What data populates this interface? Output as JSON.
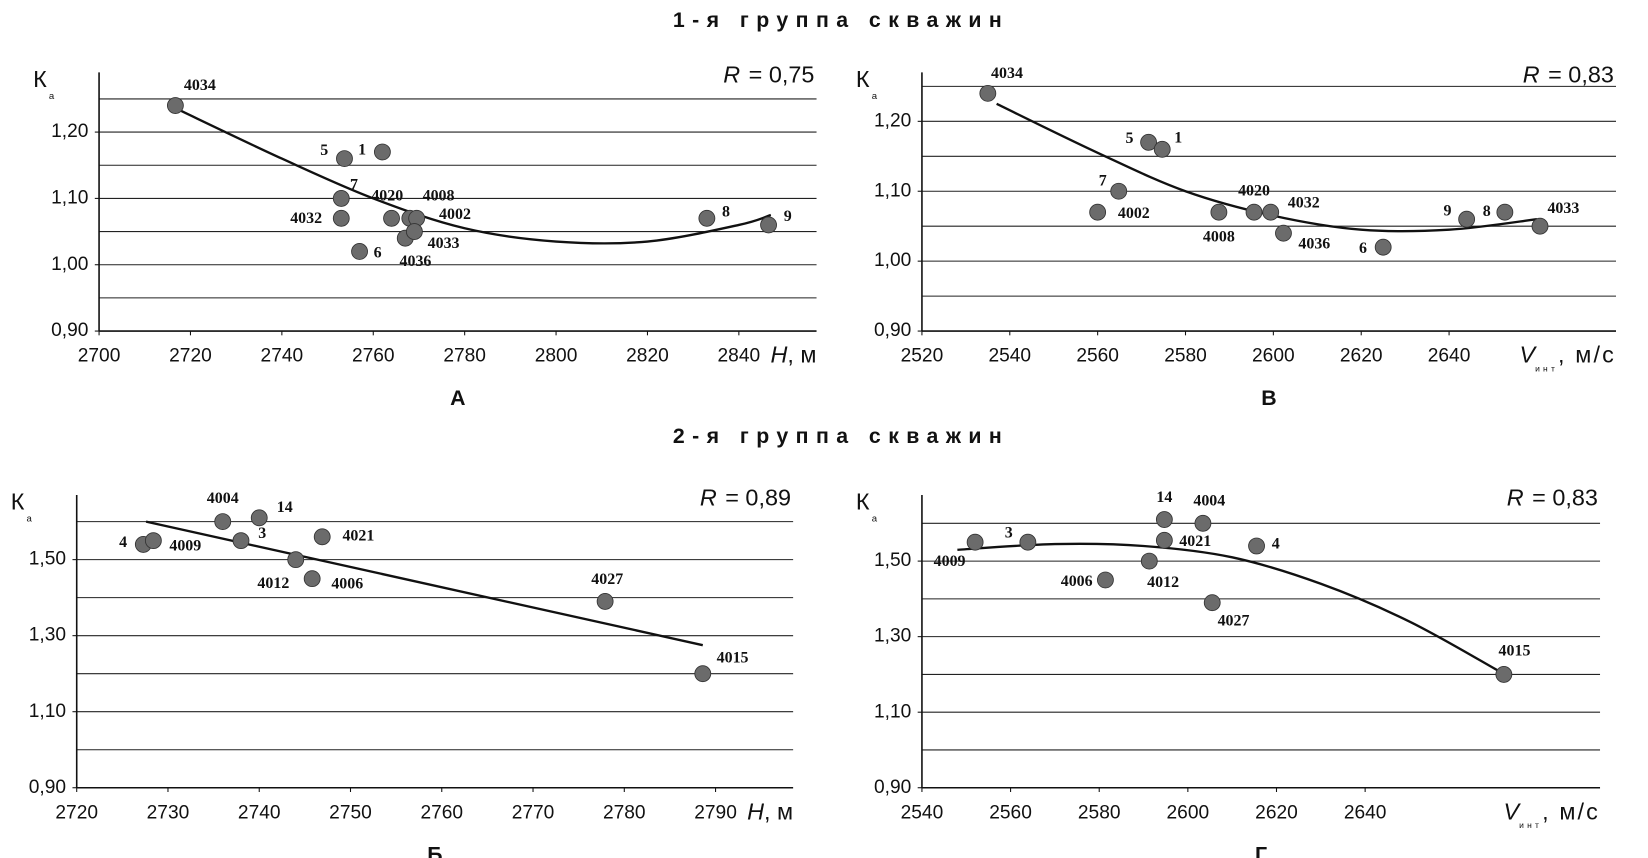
{
  "headers": [
    "1-я группа скважин",
    "2-я группа скважин"
  ],
  "chart_data": [
    {
      "type": "scatter",
      "panel": "А",
      "r_label": "R",
      "r_value": "= 0,75",
      "ylabel": "К",
      "ylabel_subscript": "а",
      "xlabel": "H",
      "xlabel_unit": ", м",
      "xlim": [
        2700,
        2857
      ],
      "ylim": [
        0.9,
        1.29
      ],
      "xticks": [
        2700,
        2720,
        2740,
        2760,
        2780,
        2800,
        2820,
        2840
      ],
      "yticks": [
        {
          "value": 0.9,
          "label": "0,90"
        },
        {
          "value": 1.0,
          "label": "1,00"
        },
        {
          "value": 1.1,
          "label": "1,10"
        },
        {
          "value": 1.2,
          "label": "1,20"
        }
      ],
      "grid_lines": [
        0.95,
        1.0,
        1.05,
        1.1,
        1.15,
        1.2,
        1.25
      ],
      "series": [
        {
          "color": "#6b6b6b",
          "x": [
            2716.7,
            2753.7,
            2762,
            2753,
            2753,
            2764,
            2768,
            2769.5,
            2767,
            2769,
            2757,
            2833,
            2846.5
          ],
          "values": [
            1.24,
            1.16,
            1.17,
            1.1,
            1.07,
            1.07,
            1.07,
            1.07,
            1.04,
            1.05,
            1.02,
            1.07,
            1.06
          ],
          "point_labels": [
            "4034",
            "5",
            "1",
            "7",
            "4032",
            "4020",
            "4008",
            "4002",
            "4033",
            "4036",
            "6",
            "8",
            "9"
          ]
        }
      ],
      "fit": {
        "color": "#111111",
        "x": [
          2717,
          2740,
          2760,
          2780,
          2800,
          2820,
          2840,
          2847
        ],
        "values": [
          1.235,
          1.16,
          1.1,
          1.055,
          1.035,
          1.035,
          1.06,
          1.075
        ]
      }
    },
    {
      "type": "scatter",
      "panel": "В",
      "r_label": "R",
      "r_value": "= 0,83",
      "ylabel": "К",
      "ylabel_subscript": "а",
      "xlabel": "V",
      "xlabel_subscript": "инт",
      "xlabel_unit": ", м/с",
      "xlim": [
        2520,
        2678
      ],
      "ylim": [
        0.9,
        1.27
      ],
      "xticks": [
        2520,
        2540,
        2560,
        2580,
        2600,
        2620,
        2640
      ],
      "yticks": [
        {
          "value": 0.9,
          "label": "0,90"
        },
        {
          "value": 1.0,
          "label": "1,00"
        },
        {
          "value": 1.1,
          "label": "1,10"
        },
        {
          "value": 1.2,
          "label": "1,20"
        }
      ],
      "grid_lines": [
        0.95,
        1.0,
        1.05,
        1.1,
        1.15,
        1.2,
        1.25
      ],
      "series": [
        {
          "color": "#6b6b6b",
          "x": [
            2535,
            2571.6,
            2574.7,
            2564.8,
            2560,
            2587.6,
            2595.6,
            2599.4,
            2602.3,
            2625,
            2644,
            2652.7,
            2660.7
          ],
          "values": [
            1.24,
            1.17,
            1.16,
            1.1,
            1.07,
            1.07,
            1.07,
            1.07,
            1.04,
            1.02,
            1.06,
            1.07,
            1.05
          ],
          "point_labels": [
            "4034",
            "5",
            "1",
            "7",
            "4002",
            "4008",
            "4020",
            "4032",
            "4036",
            "6",
            "9",
            "8",
            "4033"
          ]
        }
      ],
      "fit": {
        "color": "#111111",
        "x": [
          2537,
          2560,
          2580,
          2600,
          2620,
          2640,
          2660
        ],
        "values": [
          1.225,
          1.155,
          1.1,
          1.065,
          1.045,
          1.045,
          1.06
        ]
      }
    },
    {
      "type": "scatter",
      "panel": "Б",
      "r_label": "R",
      "r_value": "= 0,89",
      "ylabel": "К",
      "ylabel_subscript": "а",
      "xlabel": "H",
      "xlabel_unit": ", м",
      "xlim": [
        2720,
        2798.5
      ],
      "ylim": [
        0.9,
        1.67
      ],
      "xticks": [
        2720,
        2730,
        2740,
        2750,
        2760,
        2770,
        2780,
        2790
      ],
      "yticks": [
        {
          "value": 0.9,
          "label": "0,90"
        },
        {
          "value": 1.1,
          "label": "1,10"
        },
        {
          "value": 1.3,
          "label": "1,30"
        },
        {
          "value": 1.5,
          "label": "1,50"
        }
      ],
      "grid_lines": [
        1.0,
        1.1,
        1.2,
        1.3,
        1.4,
        1.5,
        1.6
      ],
      "series": [
        {
          "color": "#6b6b6b",
          "x": [
            2727.3,
            2728.4,
            2736,
            2740,
            2738,
            2746.9,
            2744,
            2745.8,
            2777.9,
            2788.6
          ],
          "values": [
            1.54,
            1.55,
            1.6,
            1.61,
            1.55,
            1.56,
            1.5,
            1.45,
            1.39,
            1.2
          ],
          "point_labels": [
            "4",
            "4009",
            "4004",
            "14",
            "3",
            "4021",
            "4012",
            "4006",
            "4027",
            "4015"
          ]
        }
      ],
      "fit": {
        "color": "#111111",
        "x": [
          2727.6,
          2788.6
        ],
        "values": [
          1.6,
          1.275
        ]
      }
    },
    {
      "type": "scatter",
      "panel": "Г",
      "r_label": "R",
      "r_value": "= 0,83",
      "ylabel": "К",
      "ylabel_subscript": "а",
      "xlabel": "V",
      "xlabel_subscript": "инт",
      "xlabel_unit": ", м/с",
      "xlim": [
        2540,
        2693
      ],
      "ylim": [
        0.9,
        1.675
      ],
      "xticks": [
        2540,
        2560,
        2580,
        2600,
        2620,
        2640
      ],
      "yticks": [
        {
          "value": 0.9,
          "label": "0,90"
        },
        {
          "value": 1.1,
          "label": "1,10"
        },
        {
          "value": 1.3,
          "label": "1,30"
        },
        {
          "value": 1.5,
          "label": "1,50"
        }
      ],
      "grid_lines": [
        1.0,
        1.1,
        1.2,
        1.3,
        1.4,
        1.5,
        1.6
      ],
      "series": [
        {
          "color": "#6b6b6b",
          "x": [
            2552,
            2563.9,
            2594.7,
            2603.4,
            2594.7,
            2615.5,
            2581.4,
            2591.3,
            2605.5,
            2671.3
          ],
          "values": [
            1.55,
            1.55,
            1.61,
            1.6,
            1.555,
            1.54,
            1.45,
            1.5,
            1.39,
            1.2
          ],
          "point_labels": [
            "4009",
            "3",
            "14",
            "4004",
            "4021",
            "4",
            "4006",
            "4012",
            "4027",
            "4015"
          ]
        }
      ],
      "fit": {
        "color": "#111111",
        "x": [
          2548,
          2570,
          2590,
          2610,
          2630,
          2650,
          2670
        ],
        "values": [
          1.53,
          1.545,
          1.54,
          1.51,
          1.44,
          1.34,
          1.21
        ]
      }
    }
  ]
}
